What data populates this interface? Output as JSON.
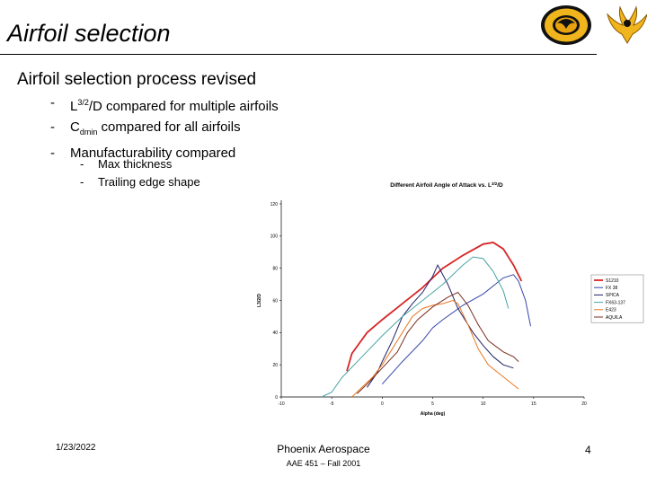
{
  "slide": {
    "title": "Airfoil selection",
    "subhead": "Airfoil selection process revised",
    "bullets": [
      {
        "pre": "L",
        "sup": "3/2",
        "post": "/D compared for multiple airfoils"
      },
      {
        "pre": "C",
        "sub": "dmin",
        "post": " compared for all airfoils"
      },
      {
        "pre": "Manufacturability compared",
        "sub": "",
        "post": ""
      }
    ],
    "sub_bullets": [
      "Max thickness",
      "Trailing edge shape"
    ],
    "footer": {
      "date": "1/23/2022",
      "company": "Phoenix Aerospace",
      "course": "AAE 451 – Fall 2001",
      "page": "4"
    },
    "colors": {
      "accent": "#d4a017"
    }
  },
  "chart_data": {
    "type": "line",
    "title_pre": "Different Airfoil Angle of Attack vs. L",
    "title_sup": "3/2",
    "title_post": "/D",
    "xlabel": "Alpha (deg)",
    "ylabel": "L3/2/D",
    "xlim": [
      -10,
      20
    ],
    "ylim": [
      0,
      120
    ],
    "x_ticks": [
      -10,
      -5,
      0,
      5,
      10,
      15,
      20
    ],
    "y_ticks": [
      0,
      20,
      40,
      60,
      80,
      100,
      120
    ],
    "legend_position": "right",
    "series": [
      {
        "name": "S1210",
        "color": "#d62728",
        "points": [
          [
            -3.5,
            16
          ],
          [
            -3,
            27
          ],
          [
            -1.5,
            40
          ],
          [
            0,
            48
          ],
          [
            2,
            58
          ],
          [
            4,
            68
          ],
          [
            5,
            74
          ],
          [
            6,
            80
          ],
          [
            8,
            88
          ],
          [
            10,
            95
          ],
          [
            11,
            96
          ],
          [
            12,
            92
          ],
          [
            13,
            82
          ],
          [
            13.8,
            72
          ]
        ]
      },
      {
        "name": "FX 38",
        "color": "#3344aa",
        "points": [
          [
            0,
            8
          ],
          [
            2,
            22
          ],
          [
            4,
            35
          ],
          [
            5,
            43
          ],
          [
            6,
            48
          ],
          [
            8,
            57
          ],
          [
            10,
            64
          ],
          [
            12,
            74
          ],
          [
            13,
            76
          ],
          [
            13.5,
            72
          ],
          [
            14.2,
            60
          ],
          [
            14.7,
            44
          ]
        ]
      },
      {
        "name": "SPICA",
        "color": "#222266",
        "points": [
          [
            -1.5,
            6
          ],
          [
            -0.5,
            15
          ],
          [
            0,
            22
          ],
          [
            1,
            35
          ],
          [
            2,
            50
          ],
          [
            3,
            58
          ],
          [
            4,
            65
          ],
          [
            5,
            75
          ],
          [
            5.5,
            82
          ],
          [
            6.5,
            70
          ],
          [
            7.5,
            55
          ],
          [
            9,
            40
          ],
          [
            10,
            32
          ],
          [
            11,
            25
          ],
          [
            12,
            20
          ],
          [
            13,
            18
          ]
        ]
      },
      {
        "name": "FX63-137",
        "color": "#4aa3a3",
        "points": [
          [
            -6,
            0
          ],
          [
            -5,
            3
          ],
          [
            -4,
            12
          ],
          [
            -2,
            25
          ],
          [
            0,
            38
          ],
          [
            2,
            50
          ],
          [
            4,
            60
          ],
          [
            6,
            70
          ],
          [
            8,
            82
          ],
          [
            9,
            87
          ],
          [
            10,
            86
          ],
          [
            11,
            78
          ],
          [
            12,
            66
          ],
          [
            12.5,
            55
          ]
        ]
      },
      {
        "name": "E423",
        "color": "#e87722",
        "points": [
          [
            -3,
            0
          ],
          [
            -1,
            12
          ],
          [
            0,
            20
          ],
          [
            1,
            30
          ],
          [
            2,
            40
          ],
          [
            3,
            50
          ],
          [
            4,
            55
          ],
          [
            5,
            57
          ],
          [
            6,
            58
          ],
          [
            7,
            60
          ],
          [
            7.5,
            58
          ],
          [
            8.5,
            45
          ],
          [
            9.5,
            30
          ],
          [
            10.5,
            20
          ],
          [
            11.5,
            15
          ],
          [
            12.5,
            10
          ],
          [
            13.5,
            5
          ]
        ]
      },
      {
        "name": "AQUILA",
        "color": "#7a2e22",
        "points": [
          [
            -2.5,
            2
          ],
          [
            -1.5,
            8
          ],
          [
            0,
            18
          ],
          [
            1.5,
            28
          ],
          [
            2.5,
            40
          ],
          [
            3.5,
            48
          ],
          [
            5,
            56
          ],
          [
            6.5,
            62
          ],
          [
            7.5,
            65
          ],
          [
            8.5,
            57
          ],
          [
            9.5,
            45
          ],
          [
            10.5,
            35
          ],
          [
            12,
            28
          ],
          [
            13,
            25
          ],
          [
            13.5,
            22
          ]
        ]
      }
    ]
  }
}
